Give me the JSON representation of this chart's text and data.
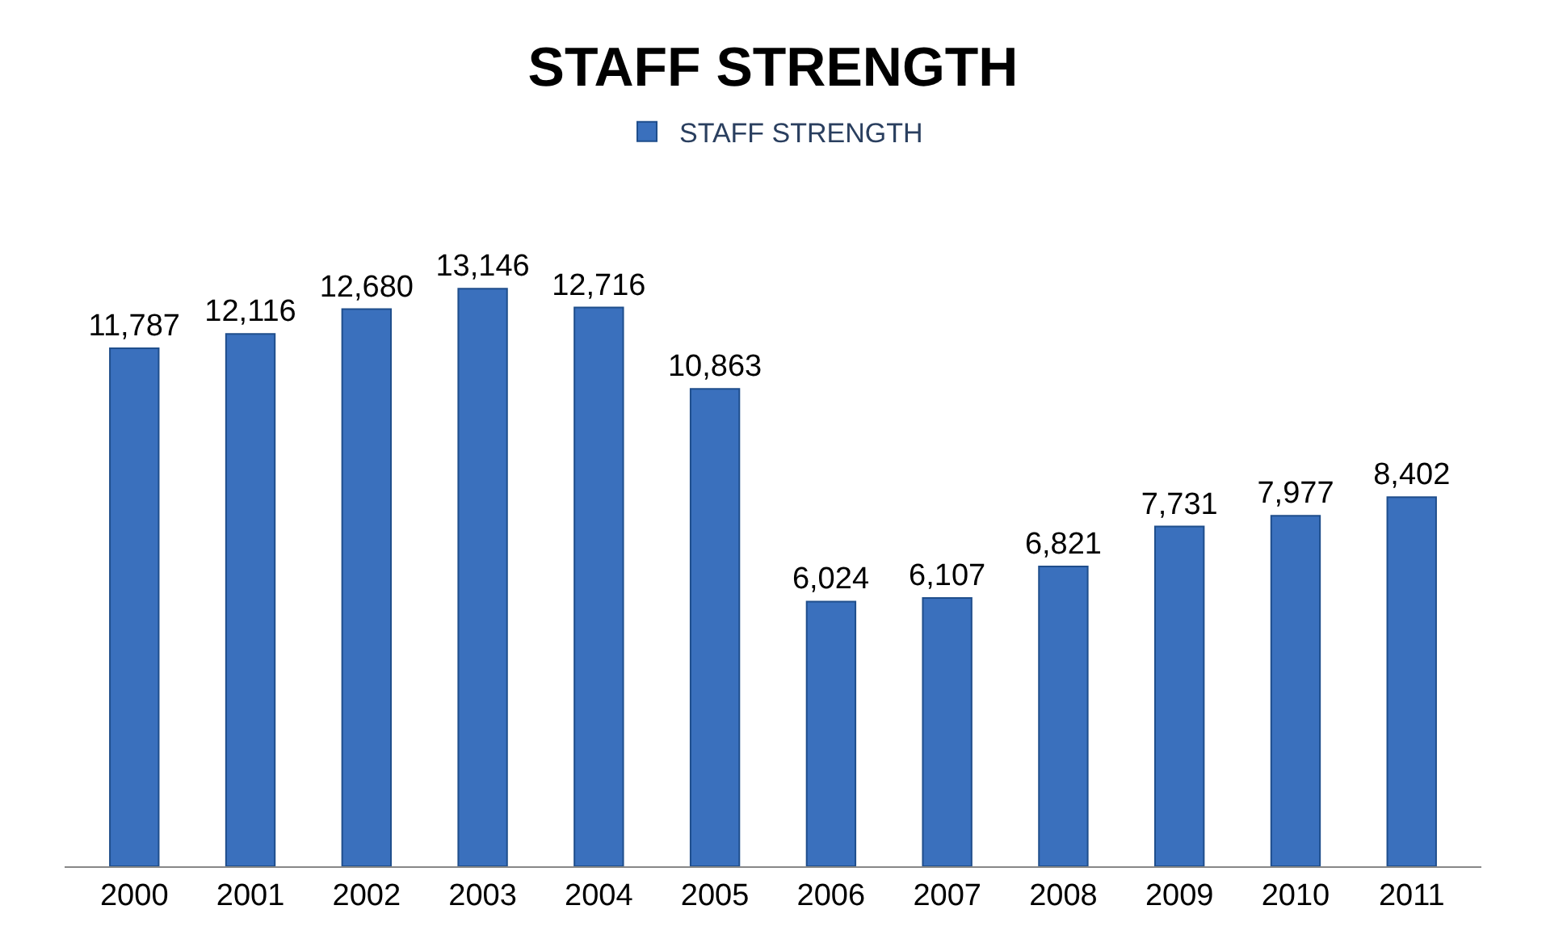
{
  "chart_data": {
    "type": "bar",
    "title": "STAFF STRENGTH",
    "categories": [
      "2000",
      "2001",
      "2002",
      "2003",
      "2004",
      "2005",
      "2006",
      "2007",
      "2008",
      "2009",
      "2010",
      "2011"
    ],
    "series": [
      {
        "name": "STAFF STRENGTH",
        "color": "#3a70bd",
        "values": [
          11787,
          12116,
          12680,
          13146,
          12716,
          10863,
          6024,
          6107,
          6821,
          7731,
          7977,
          8402
        ],
        "value_labels": [
          "11,787",
          "12,116",
          "12,680",
          "13,146",
          "12,716",
          "10,863",
          "6,024",
          "6,107",
          "6,821",
          "7,731",
          "7,977",
          "8,402"
        ]
      }
    ],
    "legend": "top"
  }
}
